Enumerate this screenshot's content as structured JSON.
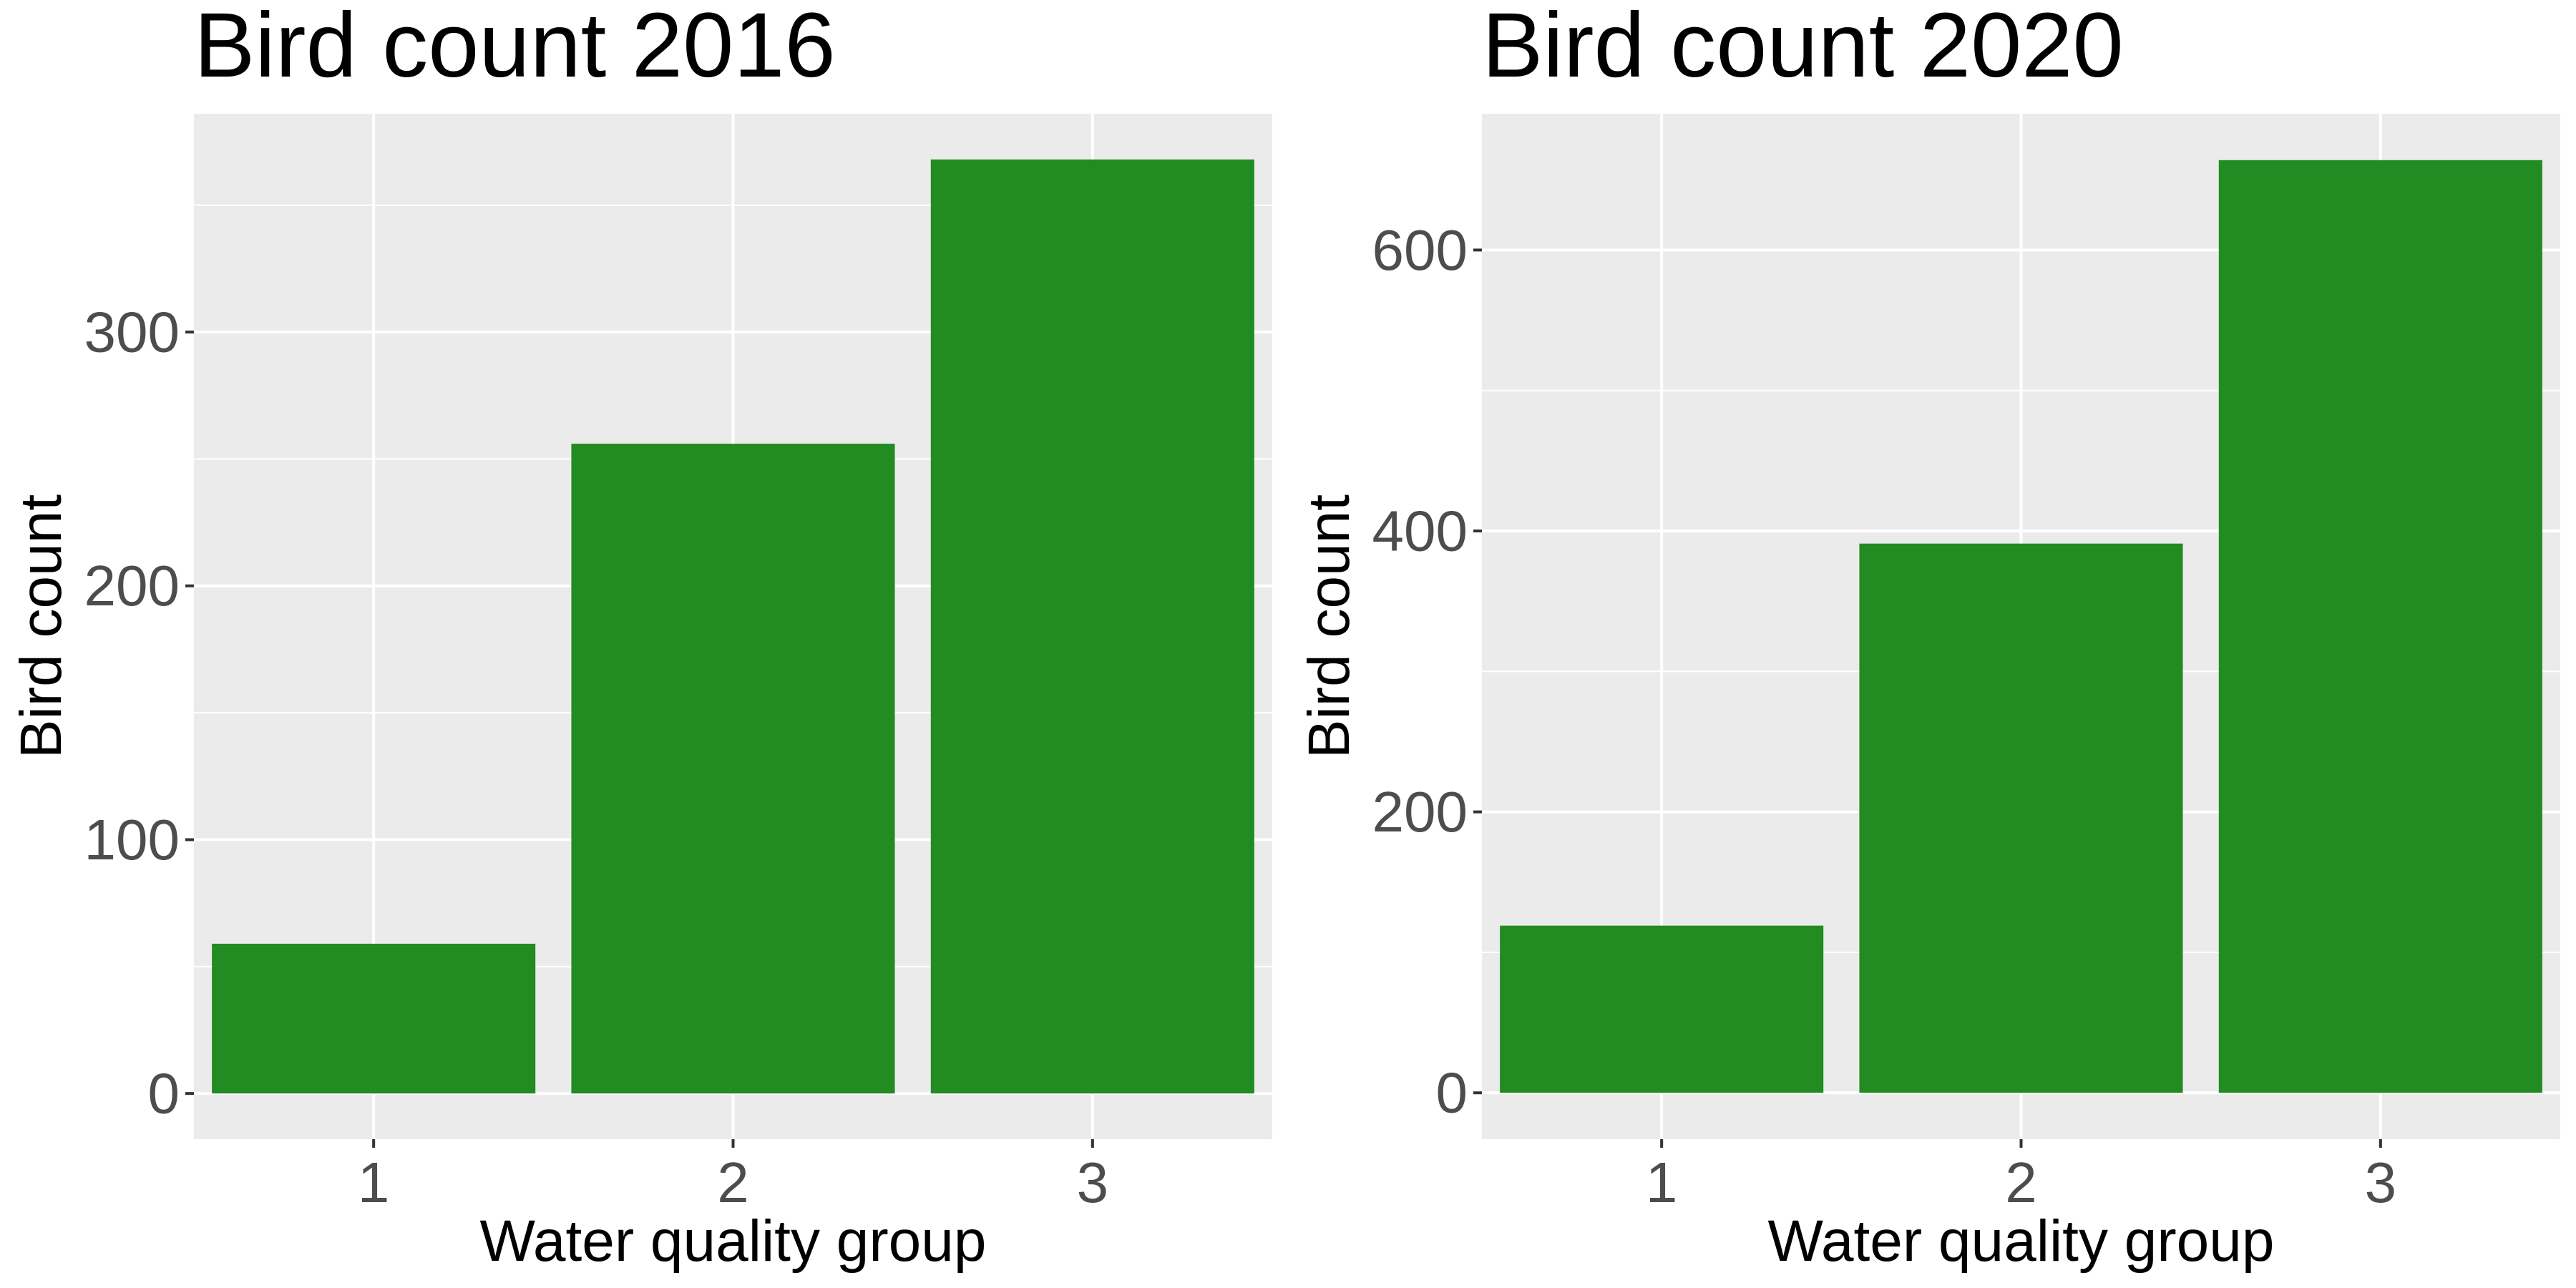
{
  "chart_data": [
    {
      "type": "bar",
      "title": "Bird count 2016",
      "xlabel": "Water quality group",
      "ylabel": "Bird count",
      "categories": [
        "1",
        "2",
        "3"
      ],
      "values": [
        59,
        256,
        368
      ],
      "ylim": [
        -18,
        386
      ],
      "yticks": [
        0,
        100,
        200,
        300
      ],
      "ytick_labels": [
        "0",
        "100",
        "200",
        "300"
      ],
      "grid": true
    },
    {
      "type": "bar",
      "title": "Bird count 2020",
      "xlabel": "Water quality group",
      "ylabel": "Bird count",
      "categories": [
        "1",
        "2",
        "3"
      ],
      "values": [
        119,
        391,
        664
      ],
      "ylim": [
        -33,
        697
      ],
      "yticks": [
        0,
        200,
        400,
        600
      ],
      "ytick_labels": [
        "0",
        "200",
        "400",
        "600"
      ],
      "grid": true
    }
  ],
  "colors": {
    "bar": "#228b22",
    "panel_background": "#ebebeb",
    "grid": "#ffffff",
    "tick_label": "#4d4d4d",
    "axis_tick": "#333333",
    "text": "#000000"
  }
}
